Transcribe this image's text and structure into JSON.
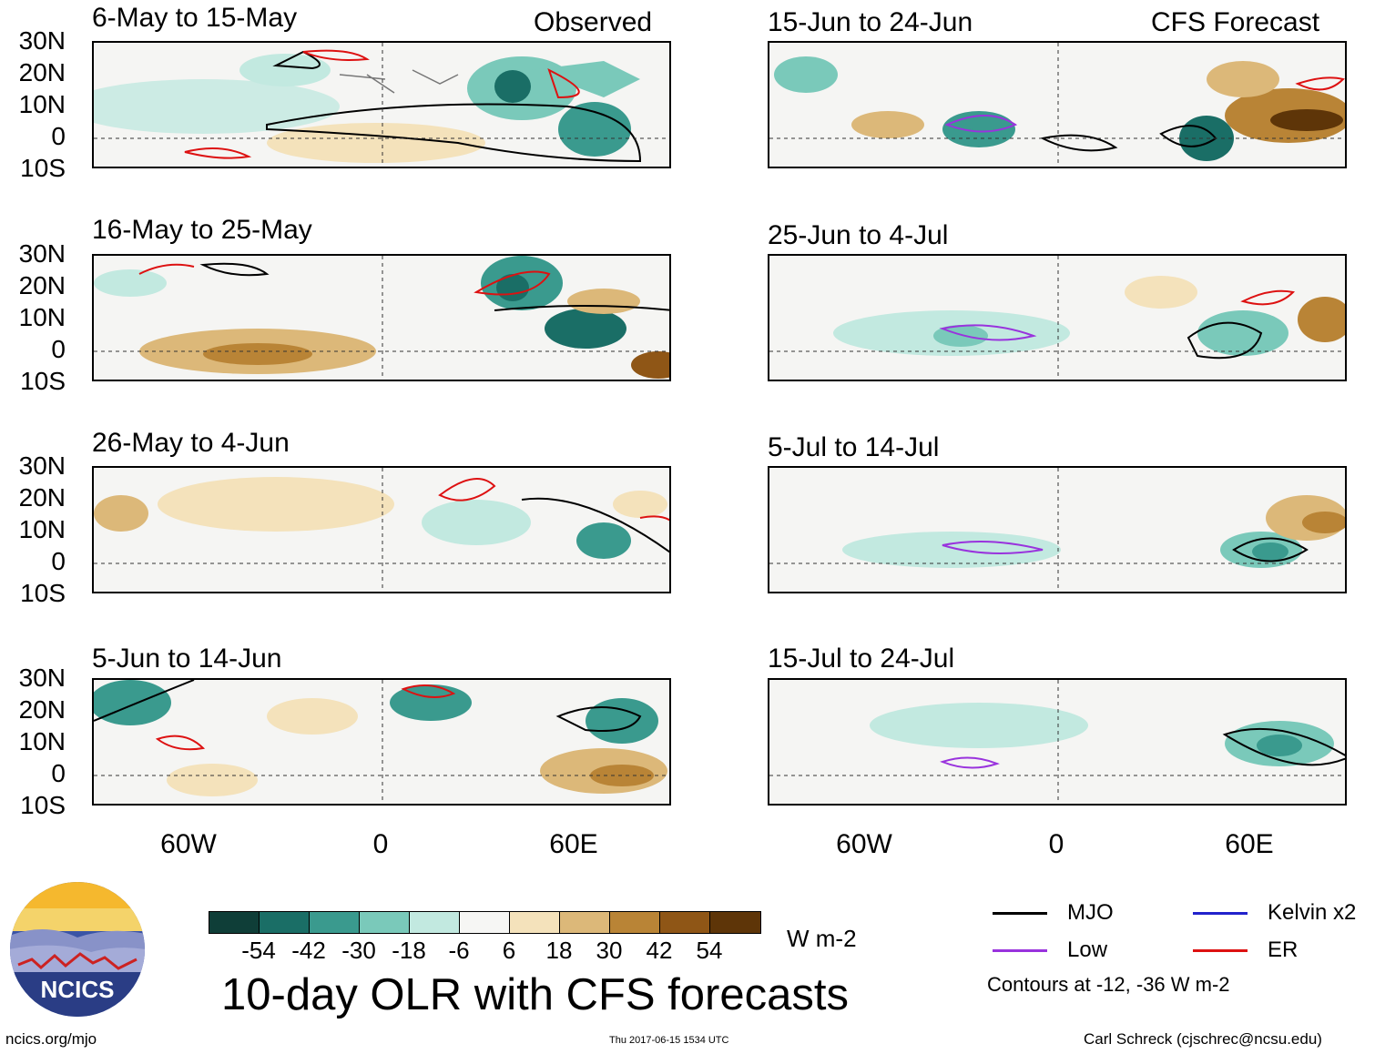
{
  "panels_left_header": "Observed",
  "panels_right_header": "CFS Forecast",
  "panels": [
    {
      "id": "p1",
      "title": "6-May to 15-May",
      "col": "observed"
    },
    {
      "id": "p2",
      "title": "16-May to 25-May",
      "col": "observed"
    },
    {
      "id": "p3",
      "title": "26-May to 4-Jun",
      "col": "observed"
    },
    {
      "id": "p4",
      "title": "5-Jun to 14-Jun",
      "col": "observed"
    },
    {
      "id": "p5",
      "title": "15-Jun to 24-Jun",
      "col": "forecast"
    },
    {
      "id": "p6",
      "title": "25-Jun to 4-Jul",
      "col": "forecast"
    },
    {
      "id": "p7",
      "title": "5-Jul to 14-Jul",
      "col": "forecast"
    },
    {
      "id": "p8",
      "title": "15-Jul to 24-Jul",
      "col": "forecast"
    }
  ],
  "lat_labels": [
    "30N",
    "20N",
    "10N",
    "0",
    "10S"
  ],
  "lon_labels": [
    "60W",
    "0",
    "60E"
  ],
  "colorbar": {
    "labels": [
      "-54",
      "-42",
      "-30",
      "-18",
      "-6",
      "6",
      "18",
      "30",
      "42",
      "54"
    ],
    "colors": [
      "#0f3e38",
      "#1a6e66",
      "#3a9a8e",
      "#7ac9ba",
      "#c2e9e0",
      "#f6f6f4",
      "#f4e2bb",
      "#dcb879",
      "#b98436",
      "#8f5616",
      "#5e3508"
    ],
    "units": "W m-2"
  },
  "title": "10-day OLR with CFS forecasts",
  "legend": {
    "items": [
      {
        "label": "MJO",
        "color": "#000000"
      },
      {
        "label": "Kelvin x2",
        "color": "#2222cc"
      },
      {
        "label": "Low",
        "color": "#9933dd"
      },
      {
        "label": "ER",
        "color": "#dd1111"
      }
    ],
    "note": "Contours at -12, -36 W m-2"
  },
  "footer": {
    "left": "ncics.org/mjo",
    "center": "Thu 2017-06-15 1534 UTC",
    "right": "Carl Schreck (cjschrec@ncsu.edu)"
  },
  "logo_text": "NCICS"
}
